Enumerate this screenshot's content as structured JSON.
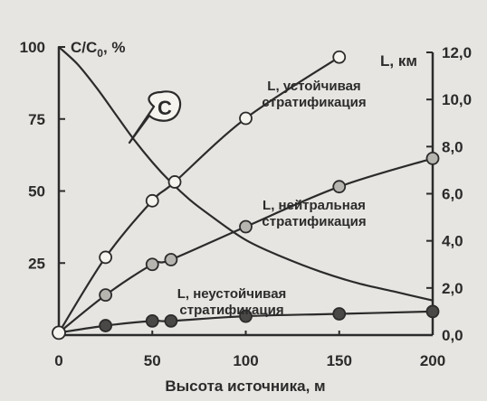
{
  "chart_data": {
    "type": "line",
    "xlabel": "Высота источника, м",
    "ylabel_left": {
      "main": "С/С",
      "sub": "0",
      "suffix": ", %"
    },
    "ylabel_right": "L, км",
    "xlim": [
      0,
      200
    ],
    "ylim_left": [
      0,
      100
    ],
    "ylim_right": [
      0,
      12
    ],
    "x_ticks": [
      "0",
      "50",
      "100",
      "150",
      "200"
    ],
    "y_left_ticks": [
      "100",
      "75",
      "50",
      "25"
    ],
    "y_right_ticks": [
      "12,0",
      "10,0",
      "8,0",
      "6,0",
      "4,0",
      "2,0",
      "0,0"
    ],
    "series": [
      {
        "name": "С",
        "axis": "left",
        "marker": "none",
        "x": [
          0,
          10,
          20,
          30,
          40,
          50,
          60,
          70,
          80,
          100,
          120,
          140,
          160,
          180,
          200
        ],
        "y": [
          100,
          94,
          86,
          77,
          68,
          60,
          53,
          47,
          42,
          33,
          27,
          22,
          18,
          15,
          12
        ]
      },
      {
        "name": "L, устойчивая стратификация",
        "axis": "right",
        "marker": "open",
        "x": [
          0,
          25,
          50,
          62,
          100,
          150
        ],
        "y": [
          0.1,
          3.3,
          5.7,
          6.5,
          9.2,
          11.8
        ]
      },
      {
        "name": "L, нейтральная стратификация",
        "axis": "right",
        "marker": "gray",
        "x": [
          0,
          25,
          50,
          60,
          100,
          150,
          200
        ],
        "y": [
          0.1,
          1.7,
          3.0,
          3.2,
          4.6,
          6.3,
          7.5
        ]
      },
      {
        "name": "L, неустойчивая стратификация",
        "axis": "right",
        "marker": "dark",
        "x": [
          0,
          25,
          50,
          60,
          100,
          150,
          200
        ],
        "y": [
          0.1,
          0.4,
          0.6,
          0.6,
          0.8,
          0.9,
          1.0
        ]
      }
    ],
    "annotations": {
      "stable_line1": "L, устойчивая",
      "stable_line2": "стратификация",
      "neutral_line1": "L, нейтральная",
      "neutral_line2": "стратификация",
      "unstable_line1": "L, неустойчивая",
      "unstable_line2": "стратификация",
      "c_callout": "С"
    },
    "grid": false,
    "colors": {
      "background": "#e7e5e1",
      "line": "#2b2b2b",
      "marker_open": "#f6f4ef",
      "marker_gray": "#b7b5b0",
      "marker_dark": "#4a4846"
    }
  }
}
